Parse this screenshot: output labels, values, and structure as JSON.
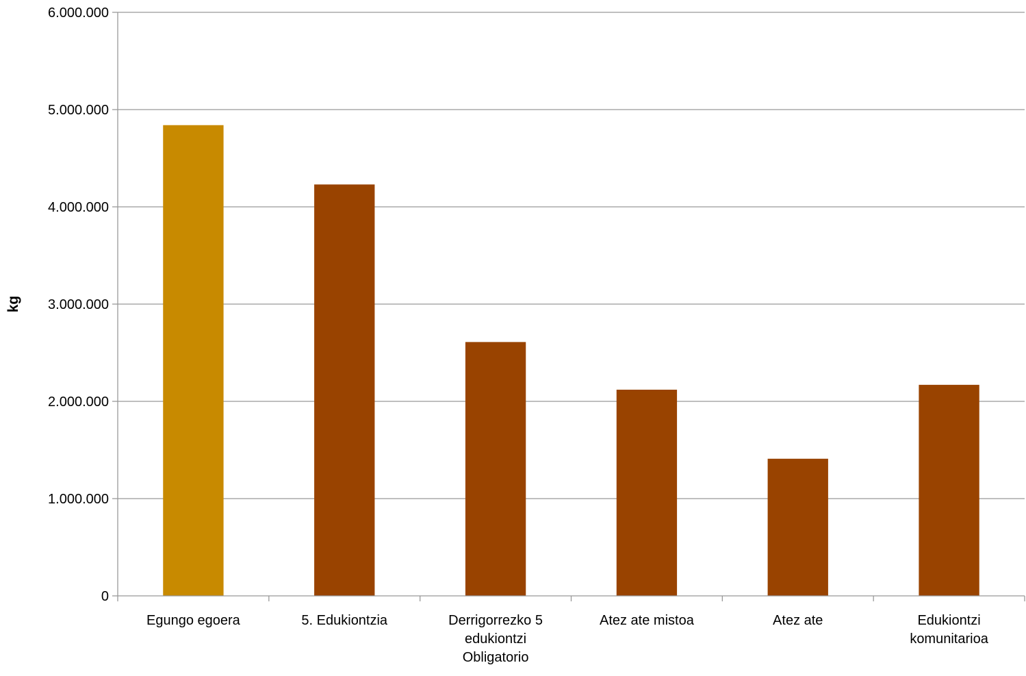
{
  "chart_data": {
    "type": "bar",
    "categories": [
      [
        "Egungo egoera"
      ],
      [
        "5. Edukiontzia"
      ],
      [
        "Derrigorrezko 5",
        "edukiontzi",
        "Obligatorio"
      ],
      [
        "Atez ate mistoa"
      ],
      [
        "Atez ate"
      ],
      [
        "Edukiontzi",
        "komunitarioa"
      ]
    ],
    "values": [
      4840000,
      4230000,
      2610000,
      2120000,
      1410000,
      2170000
    ],
    "bar_colors": [
      "#C88A00",
      "#994300",
      "#994300",
      "#994300",
      "#994300",
      "#994300"
    ],
    "title": "",
    "xlabel": "",
    "ylabel": "kg",
    "ylim": [
      0,
      6000000
    ],
    "yticks": [
      0,
      1000000,
      2000000,
      3000000,
      4000000,
      5000000,
      6000000
    ],
    "ytick_labels": [
      "0",
      "1.000.000",
      "2.000.000",
      "3.000.000",
      "4.000.000",
      "5.000.000",
      "6.000.000"
    ],
    "grid": true,
    "legend": "none",
    "gridline_color": "#999999",
    "axis_color": "#999999"
  }
}
